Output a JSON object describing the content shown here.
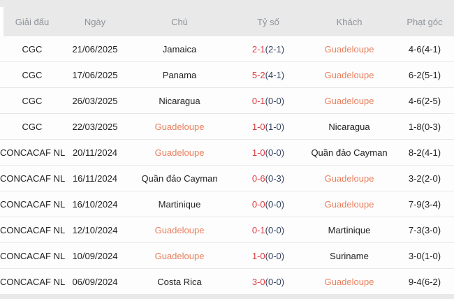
{
  "colors": {
    "page_background": "#e9e9e9",
    "header_background": "#e9e9e9",
    "header_text": "#8e939a",
    "body_text": "#222222",
    "score_red": "#dd3b41",
    "score_detail_navy": "#33425e",
    "highlight_team_orange": "#e9805e",
    "row_separator": "#e7e7e7"
  },
  "table": {
    "columns": [
      {
        "key": "league",
        "label": "Giải đấu"
      },
      {
        "key": "date",
        "label": "Ngày"
      },
      {
        "key": "home",
        "label": "Chú"
      },
      {
        "key": "score",
        "label": "Tỷ số"
      },
      {
        "key": "away",
        "label": "Khách"
      },
      {
        "key": "corners",
        "label": "Phạt góc"
      }
    ],
    "rows": [
      {
        "league": "CGC",
        "date": "21/06/2025",
        "home": "Jamaica",
        "home_highlight": false,
        "score": "2-1",
        "score_detail": "(2-1)",
        "away": "Guadeloupe",
        "away_highlight": true,
        "corners": "4-6(4-1)"
      },
      {
        "league": "CGC",
        "date": "17/06/2025",
        "home": "Panama",
        "home_highlight": false,
        "score": "5-2",
        "score_detail": "(4-1)",
        "away": "Guadeloupe",
        "away_highlight": true,
        "corners": "6-2(5-1)"
      },
      {
        "league": "CGC",
        "date": "26/03/2025",
        "home": "Nicaragua",
        "home_highlight": false,
        "score": "0-1",
        "score_detail": "(0-0)",
        "away": "Guadeloupe",
        "away_highlight": true,
        "corners": "4-6(2-5)"
      },
      {
        "league": "CGC",
        "date": "22/03/2025",
        "home": "Guadeloupe",
        "home_highlight": true,
        "score": "1-0",
        "score_detail": "(1-0)",
        "away": "Nicaragua",
        "away_highlight": false,
        "corners": "1-8(0-3)"
      },
      {
        "league": "CONCACAF NL",
        "date": "20/11/2024",
        "home": "Guadeloupe",
        "home_highlight": true,
        "score": "1-0",
        "score_detail": "(0-0)",
        "away": "Quần đảo Cayman",
        "away_highlight": false,
        "corners": "8-2(4-1)"
      },
      {
        "league": "CONCACAF NL",
        "date": "16/11/2024",
        "home": "Quần đảo Cayman",
        "home_highlight": false,
        "score": "0-6",
        "score_detail": "(0-3)",
        "away": "Guadeloupe",
        "away_highlight": true,
        "corners": "3-2(2-0)"
      },
      {
        "league": "CONCACAF NL",
        "date": "16/10/2024",
        "home": "Martinique",
        "home_highlight": false,
        "score": "0-0",
        "score_detail": "(0-0)",
        "away": "Guadeloupe",
        "away_highlight": true,
        "corners": "7-9(3-4)"
      },
      {
        "league": "CONCACAF NL",
        "date": "12/10/2024",
        "home": "Guadeloupe",
        "home_highlight": true,
        "score": "0-1",
        "score_detail": "(0-0)",
        "away": "Martinique",
        "away_highlight": false,
        "corners": "7-3(3-0)"
      },
      {
        "league": "CONCACAF NL",
        "date": "10/09/2024",
        "home": "Guadeloupe",
        "home_highlight": true,
        "score": "1-0",
        "score_detail": "(0-0)",
        "away": "Suriname",
        "away_highlight": false,
        "corners": "3-0(1-0)"
      },
      {
        "league": "CONCACAF NL",
        "date": "06/09/2024",
        "home": "Costa Rica",
        "home_highlight": false,
        "score": "3-0",
        "score_detail": "(0-0)",
        "away": "Guadeloupe",
        "away_highlight": true,
        "corners": "9-4(6-2)"
      }
    ]
  }
}
